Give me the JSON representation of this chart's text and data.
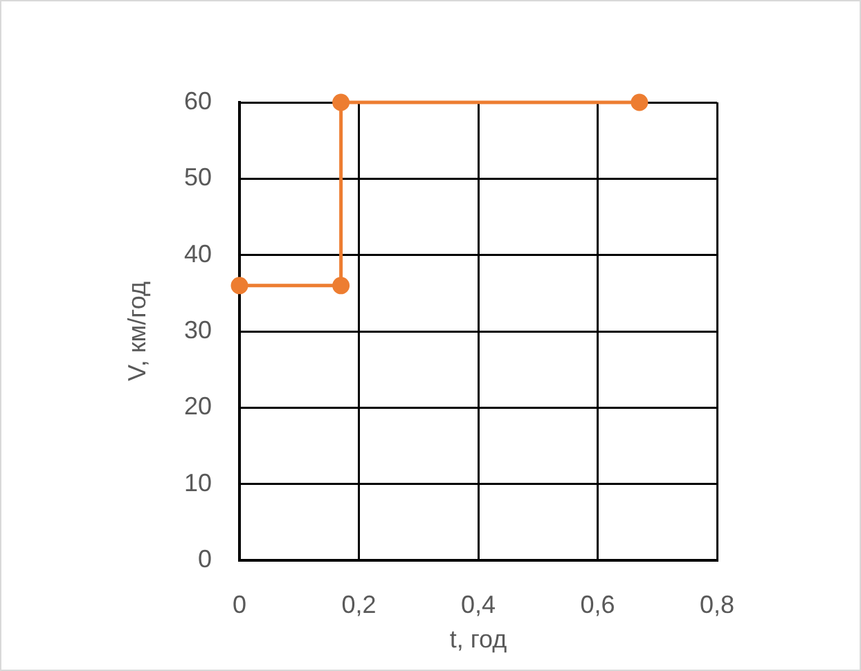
{
  "chart_data": {
    "type": "scatter",
    "x": [
      0,
      0.17,
      0.17,
      0.67
    ],
    "values": [
      36,
      36,
      60,
      60
    ],
    "color": "#ed7d31",
    "marker": "circle",
    "line_style": "solid",
    "xlabel": "t, год",
    "ylabel": "V, км/год",
    "xlim": [
      0,
      0.8
    ],
    "xticks": [
      0,
      {
        "value": 0.2,
        "label": "0,2"
      },
      {
        "value": 0.4,
        "label": "0,4"
      },
      {
        "value": 0.6,
        "label": "0,6"
      },
      {
        "value": 0.8,
        "label": "0,8"
      }
    ],
    "ylim": [
      0,
      60
    ],
    "yticks": [
      0,
      10,
      20,
      30,
      40,
      50,
      60
    ],
    "grid": true
  }
}
